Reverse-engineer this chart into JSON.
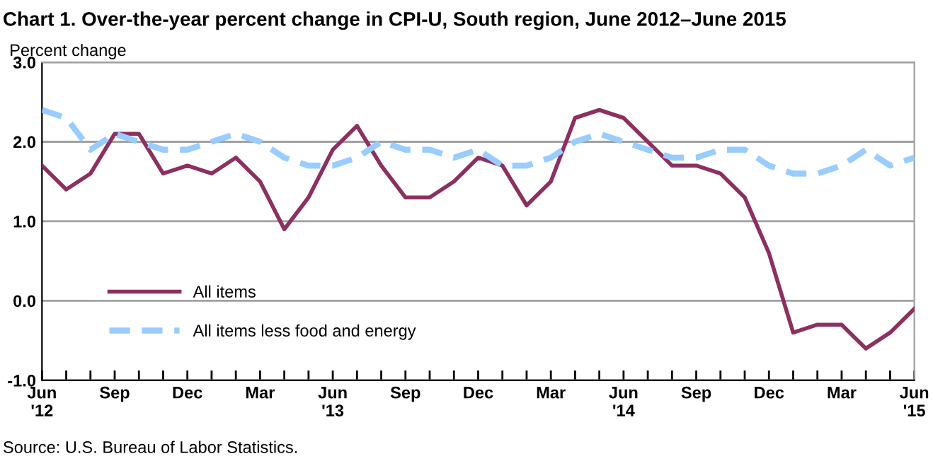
{
  "chart_data": {
    "type": "line",
    "title": "Chart 1. Over-the-year percent change in CPI-U, South region, June 2012–June 2015",
    "ylabel": "Percent change",
    "categories": [
      "Jun\n'12",
      null,
      null,
      "Sep",
      null,
      null,
      "Dec",
      null,
      null,
      "Mar",
      null,
      null,
      "Jun\n'13",
      null,
      null,
      "Sep",
      null,
      null,
      "Dec",
      null,
      null,
      "Mar",
      null,
      null,
      "Jun\n'14",
      null,
      null,
      "Sep",
      null,
      null,
      "Dec",
      null,
      null,
      "Mar",
      null,
      null,
      "Jun\n'15"
    ],
    "series": [
      {
        "name": "All items",
        "color": "#8b3060",
        "line_style": "solid",
        "values": [
          1.7,
          1.4,
          1.6,
          2.1,
          2.1,
          1.6,
          1.7,
          1.6,
          1.8,
          1.5,
          0.9,
          1.3,
          1.9,
          2.2,
          1.7,
          1.3,
          1.3,
          1.5,
          1.8,
          1.7,
          1.2,
          1.5,
          2.3,
          2.4,
          2.3,
          2.0,
          1.7,
          1.7,
          1.6,
          1.3,
          0.6,
          -0.4,
          -0.3,
          -0.3,
          -0.6,
          -0.4,
          -0.1
        ]
      },
      {
        "name": "All items less food and energy",
        "color": "#99ccff",
        "line_style": "dashed",
        "values": [
          2.4,
          2.3,
          1.9,
          2.1,
          2.0,
          1.9,
          1.9,
          2.0,
          2.1,
          2.0,
          1.8,
          1.7,
          1.7,
          1.8,
          2.0,
          1.9,
          1.9,
          1.8,
          1.9,
          1.7,
          1.7,
          1.8,
          2.0,
          2.1,
          2.0,
          1.9,
          1.8,
          1.8,
          1.9,
          1.9,
          1.7,
          1.6,
          1.6,
          1.7,
          1.9,
          1.7,
          1.8
        ]
      }
    ],
    "ylim": [
      -1.0,
      3.0
    ],
    "yticks": [
      {
        "value": -1.0,
        "label": "-1.0"
      },
      {
        "value": 0.0,
        "label": "0.0"
      },
      {
        "value": 1.0,
        "label": "1.0"
      },
      {
        "value": 2.0,
        "label": "2.0"
      },
      {
        "value": 3.0,
        "label": "3.0"
      }
    ],
    "grid": "y",
    "legend": "lower left",
    "annotations": [
      "Source: U.S. Bureau of Labor Statistics."
    ]
  }
}
